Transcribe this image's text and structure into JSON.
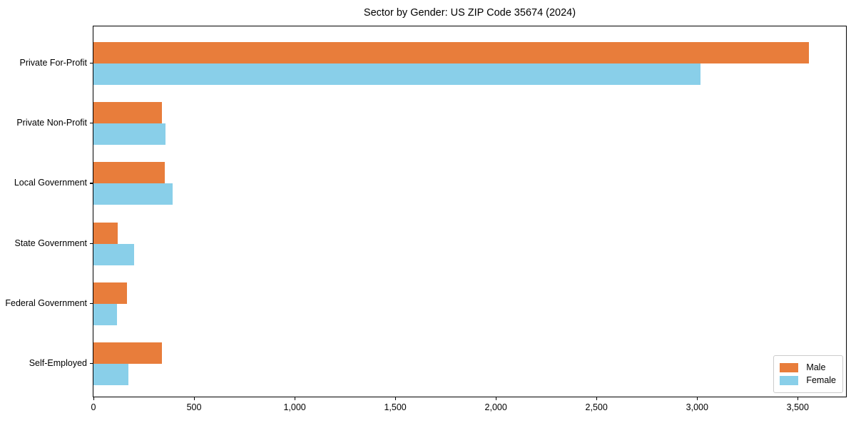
{
  "title": "Sector by Gender: US ZIP Code 35674 (2024)",
  "chart_data": {
    "type": "bar",
    "orientation": "horizontal",
    "title": "Sector by Gender: US ZIP Code 35674 (2024)",
    "xlabel": "",
    "ylabel": "",
    "categories": [
      "Private For-Profit",
      "Private Non-Profit",
      "Local Government",
      "State Government",
      "Federal Government",
      "Self-Employed"
    ],
    "series": [
      {
        "name": "Male",
        "color": "#e87d3b",
        "values": [
          3556,
          340,
          354,
          122,
          166,
          339
        ]
      },
      {
        "name": "Female",
        "color": "#89cfe9",
        "values": [
          3016,
          358,
          394,
          203,
          117,
          172
        ]
      }
    ],
    "xlim": [
      0,
      3740
    ],
    "x_ticks": [
      0,
      500,
      1000,
      1500,
      2000,
      2500,
      3000,
      3500
    ],
    "x_tick_labels": [
      "0",
      "500",
      "1,000",
      "1,500",
      "2,000",
      "2,500",
      "3,000",
      "3,500"
    ],
    "grid": false,
    "legend_position": "lower right",
    "axis_color": "#000000",
    "background_color": "#ffffff"
  }
}
